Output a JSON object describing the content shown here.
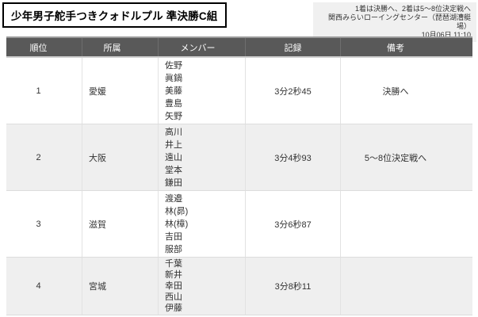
{
  "title": "少年男子舵手つきクォドルプル 準決勝C組",
  "info": {
    "line1": "1着は決勝へ、2着は5〜8位決定戦へ",
    "line2": "関西みらいローイングセンター（琵琶湖漕艇場）",
    "line3": "10月06日 11:10"
  },
  "table": {
    "headers": [
      "順位",
      "所属",
      "メンバー",
      "記録",
      "備考"
    ],
    "rows": [
      {
        "rank": "1",
        "team": "愛媛",
        "members": [
          "佐野",
          "眞鍋",
          "美藤",
          "豊島",
          "矢野"
        ],
        "record": "3分2秒45",
        "note": "決勝へ"
      },
      {
        "rank": "2",
        "team": "大阪",
        "members": [
          "高川",
          "井上",
          "遠山",
          "堂本",
          "鎌田"
        ],
        "record": "3分4秒93",
        "note": "5〜8位決定戦へ"
      },
      {
        "rank": "3",
        "team": "滋賀",
        "members": [
          "渡邉",
          "林(昴)",
          "林(樟)",
          "吉田",
          "服部"
        ],
        "record": "3分6秒87",
        "note": ""
      },
      {
        "rank": "4",
        "team": "宮城",
        "members": [
          "千葉",
          "新井",
          "幸田",
          "西山",
          "伊藤"
        ],
        "record": "3分8秒11",
        "note": ""
      }
    ]
  },
  "colors": {
    "header_bg": "#595959",
    "header_text": "#ffffff",
    "row_alt_bg": "#efefef",
    "border": "#e2e2e2",
    "text": "#333333",
    "info_bg": "#f0f0f0"
  }
}
